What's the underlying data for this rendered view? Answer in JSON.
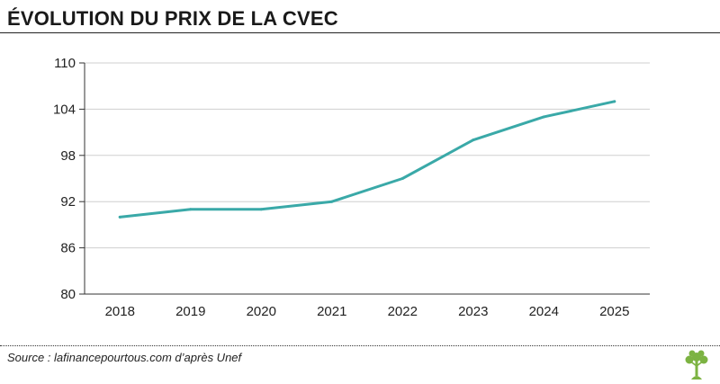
{
  "header": {
    "title": "ÉVOLUTION DU PRIX DE LA CVEC"
  },
  "footer": {
    "source": "Source : lafinancepourtous.com d’après Unef"
  },
  "logo": {
    "icon": "tree-icon"
  },
  "colors": {
    "line": "#3aa9a8",
    "grid": "#cfcfcf",
    "axis": "#333333",
    "logo": "#7cb342"
  },
  "chart_data": {
    "type": "line",
    "title": "ÉVOLUTION DU PRIX DE LA CVEC",
    "xlabel": "",
    "ylabel": "",
    "categories": [
      "2018",
      "2019",
      "2020",
      "2021",
      "2022",
      "2023",
      "2024",
      "2025"
    ],
    "series": [
      {
        "values": [
          90,
          91,
          91,
          92,
          95,
          100,
          103,
          105
        ]
      }
    ],
    "ylim": [
      80,
      110
    ],
    "yticks": [
      80,
      86,
      92,
      98,
      104,
      110
    ],
    "ytick_labels": [
      "80",
      "86",
      "92",
      "98",
      "104",
      "110"
    ],
    "grid": true,
    "legend": "none"
  }
}
